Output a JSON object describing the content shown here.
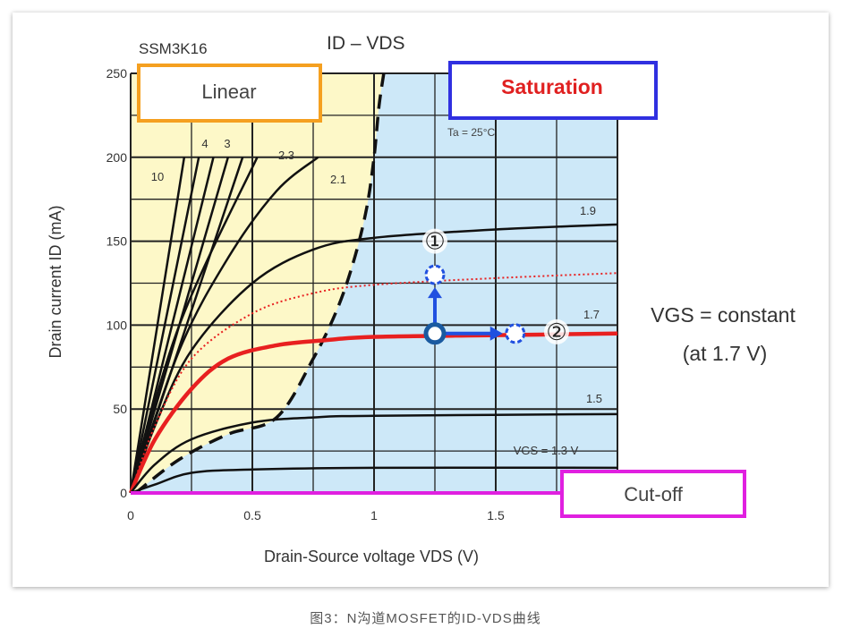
{
  "caption": "图3：N沟道MOSFET的ID-VDS曲线",
  "chart_data": {
    "type": "line",
    "device": "SSM3K16",
    "title": "ID – VDS",
    "xlabel": "Drain-Source voltage  VDS  (V)",
    "ylabel": "Drain current  ID  (mA)",
    "xlim": [
      0,
      2.0
    ],
    "ylim": [
      0,
      250
    ],
    "x_ticks": [
      "0",
      "0.5",
      "1",
      "1.5"
    ],
    "y_ticks": [
      "0",
      "50",
      "100",
      "150",
      "200",
      "250"
    ],
    "grid": true,
    "condition": "Ta = 25°C",
    "regions": {
      "linear": "Linear",
      "saturation": "Saturation",
      "cutoff": "Cut-off"
    },
    "colors": {
      "linear_fill": "#fdf8c8",
      "saturation_fill": "#cde8f8",
      "linear_box": "#f5a020",
      "saturation_box": "#3030e0",
      "cutoff_box": "#e020e0",
      "saturation_text": "#e02020",
      "vgs17": "#e82020",
      "marker": "#1a5aa0"
    },
    "series": [
      {
        "name": "10",
        "points": [
          [
            0,
            0
          ],
          [
            0.22,
            200
          ]
        ]
      },
      {
        "name": "4",
        "points": [
          [
            0,
            0
          ],
          [
            0.28,
            200
          ]
        ]
      },
      {
        "name": "3",
        "points": [
          [
            0,
            0
          ],
          [
            0.34,
            200
          ]
        ]
      },
      {
        "name": "",
        "points": [
          [
            0,
            0
          ],
          [
            0.4,
            200
          ]
        ]
      },
      {
        "name": "",
        "points": [
          [
            0,
            0
          ],
          [
            0.46,
            200
          ]
        ]
      },
      {
        "name": "2.3",
        "points": [
          [
            0,
            0
          ],
          [
            0.2,
            100
          ],
          [
            0.52,
            200
          ]
        ]
      },
      {
        "name": "2.1",
        "points": [
          [
            0,
            0
          ],
          [
            0.2,
            85
          ],
          [
            0.4,
            140
          ],
          [
            0.6,
            180
          ],
          [
            0.77,
            200
          ]
        ]
      },
      {
        "name": "1.9",
        "points": [
          [
            0,
            0
          ],
          [
            0.1,
            40
          ],
          [
            0.25,
            85
          ],
          [
            0.5,
            125
          ],
          [
            0.75,
            145
          ],
          [
            1.0,
            152
          ],
          [
            1.5,
            157
          ],
          [
            2.0,
            160
          ]
        ]
      },
      {
        "name": "",
        "style": "dotted-red",
        "points": [
          [
            0,
            0
          ],
          [
            0.1,
            40
          ],
          [
            0.25,
            80
          ],
          [
            0.5,
            107
          ],
          [
            0.75,
            119
          ],
          [
            1.0,
            124
          ],
          [
            1.5,
            128
          ],
          [
            2.0,
            131
          ]
        ]
      },
      {
        "name": "1.7",
        "style": "red",
        "points": [
          [
            0,
            0
          ],
          [
            0.1,
            32
          ],
          [
            0.25,
            62
          ],
          [
            0.4,
            80
          ],
          [
            0.6,
            88
          ],
          [
            0.8,
            91
          ],
          [
            1.0,
            93
          ],
          [
            1.5,
            94
          ],
          [
            2.0,
            95
          ]
        ]
      },
      {
        "name": "1.5",
        "points": [
          [
            0,
            0
          ],
          [
            0.1,
            17
          ],
          [
            0.25,
            32
          ],
          [
            0.5,
            42
          ],
          [
            0.75,
            45
          ],
          [
            1.0,
            46
          ],
          [
            2.0,
            47
          ]
        ]
      },
      {
        "name": "VGS = 1.3 V",
        "points": [
          [
            0,
            0
          ],
          [
            0.1,
            5
          ],
          [
            0.25,
            12
          ],
          [
            0.5,
            14
          ],
          [
            1.0,
            15
          ],
          [
            2.0,
            15
          ]
        ]
      }
    ],
    "boundary": [
      [
        0.02,
        0
      ],
      [
        0.2,
        20
      ],
      [
        0.4,
        35
      ],
      [
        0.6,
        45
      ],
      [
        0.75,
        80
      ],
      [
        0.85,
        110
      ],
      [
        0.92,
        140
      ],
      [
        0.97,
        170
      ],
      [
        1.0,
        200
      ],
      [
        1.02,
        230
      ],
      [
        1.04,
        250
      ]
    ],
    "annotations": {
      "point1": "①",
      "point2": "②",
      "operating_point": [
        1.25,
        95
      ],
      "shift_up": [
        1.25,
        130
      ],
      "shift_right": [
        1.58,
        95
      ],
      "vgs_note": "VGS = constant",
      "vgs_note2": "(at 1.7 V)"
    }
  }
}
